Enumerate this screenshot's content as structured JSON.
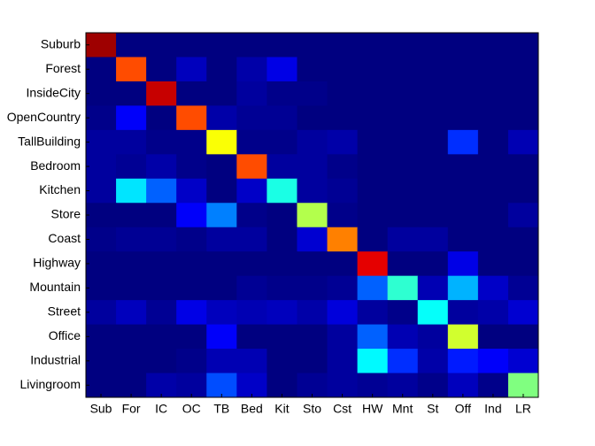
{
  "chart_data": {
    "type": "heatmap",
    "colormap": "jet",
    "zlim": [
      0,
      1
    ],
    "x_categories": [
      "Sub",
      "For",
      "IC",
      "OC",
      "TB",
      "Bed",
      "Kit",
      "Sto",
      "Cst",
      "HW",
      "Mnt",
      "St",
      "Off",
      "Ind",
      "LR"
    ],
    "y_categories": [
      "Suburb",
      "Forest",
      "InsideCity",
      "OpenCountry",
      "TallBuilding",
      "Bedroom",
      "Kitchen",
      "Store",
      "Coast",
      "Highway",
      "Mountain",
      "Street",
      "Office",
      "Industrial",
      "Livingroom"
    ],
    "values": [
      [
        0.97,
        0,
        0,
        0,
        0,
        0,
        0,
        0,
        0,
        0,
        0,
        0,
        0,
        0,
        0
      ],
      [
        0,
        0.8,
        0,
        0.06,
        0,
        0.04,
        0.1,
        0,
        0,
        0,
        0,
        0,
        0,
        0,
        0
      ],
      [
        0,
        0,
        0.93,
        0,
        0,
        0.03,
        0.01,
        0.01,
        0,
        0,
        0,
        0,
        0,
        0,
        0
      ],
      [
        0.01,
        0.12,
        0,
        0.8,
        0.04,
        0.02,
        0.02,
        0,
        0,
        0,
        0,
        0,
        0,
        0,
        0
      ],
      [
        0.03,
        0.03,
        0.01,
        0.01,
        0.62,
        0.01,
        0.01,
        0.03,
        0.04,
        0,
        0,
        0,
        0.17,
        0,
        0.05
      ],
      [
        0.03,
        0.02,
        0.04,
        0.01,
        0,
        0.8,
        0.03,
        0.03,
        0.01,
        0,
        0,
        0,
        0,
        0,
        0
      ],
      [
        0.03,
        0.35,
        0.22,
        0.07,
        0,
        0.07,
        0.4,
        0.03,
        0.02,
        0,
        0,
        0,
        0,
        0,
        0
      ],
      [
        0,
        0,
        0,
        0.12,
        0.25,
        0.01,
        0,
        0.55,
        0.01,
        0,
        0,
        0,
        0,
        0,
        0.03
      ],
      [
        0.01,
        0.02,
        0.02,
        0.01,
        0.03,
        0.03,
        0,
        0.08,
        0.75,
        0,
        0.03,
        0.03,
        0,
        0,
        0
      ],
      [
        0,
        0,
        0,
        0,
        0,
        0,
        0,
        0,
        0,
        0.9,
        0,
        0,
        0.1,
        0,
        0
      ],
      [
        0,
        0,
        0,
        0,
        0,
        0.02,
        0.01,
        0.01,
        0.02,
        0.22,
        0.42,
        0.05,
        0.3,
        0.07,
        0.02
      ],
      [
        0.03,
        0.06,
        0.02,
        0.1,
        0.06,
        0.05,
        0.06,
        0.04,
        0.09,
        0.03,
        0.01,
        0.38,
        0.03,
        0.04,
        0.08
      ],
      [
        0,
        0,
        0,
        0,
        0.12,
        0,
        0,
        0,
        0.03,
        0.22,
        0.05,
        0.03,
        0.58,
        0,
        0
      ],
      [
        0,
        0,
        0,
        0.01,
        0.05,
        0.05,
        0,
        0,
        0.03,
        0.37,
        0.17,
        0.04,
        0.15,
        0.12,
        0.08
      ],
      [
        0,
        0,
        0.04,
        0.03,
        0.2,
        0.07,
        0,
        0.02,
        0.03,
        0.02,
        0.03,
        0.01,
        0.06,
        0.01,
        0.5
      ]
    ]
  }
}
